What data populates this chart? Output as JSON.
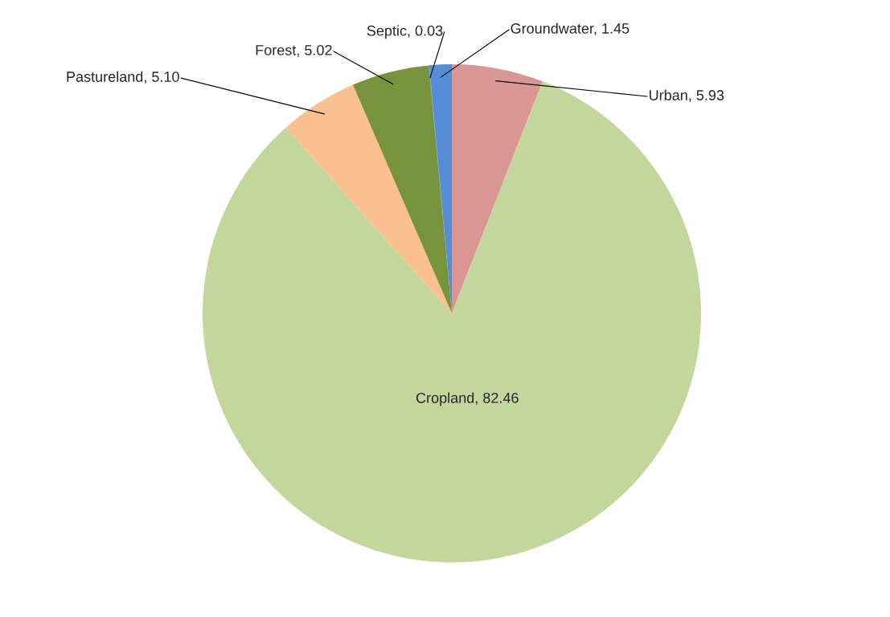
{
  "chart_data": {
    "type": "pie",
    "categories": [
      "Urban",
      "Cropland",
      "Pastureland",
      "Forest",
      "Septic",
      "Groundwater"
    ],
    "values": [
      5.93,
      82.46,
      5.1,
      5.02,
      0.03,
      1.45
    ],
    "value_labels": [
      "5.93",
      "82.46",
      "5.10",
      "5.02",
      "0.03",
      "1.45"
    ],
    "colors": [
      "#d99694",
      "#c3d69b",
      "#fac090",
      "#77933c",
      "#4f81bd",
      "#558ed5"
    ],
    "legend": false
  }
}
